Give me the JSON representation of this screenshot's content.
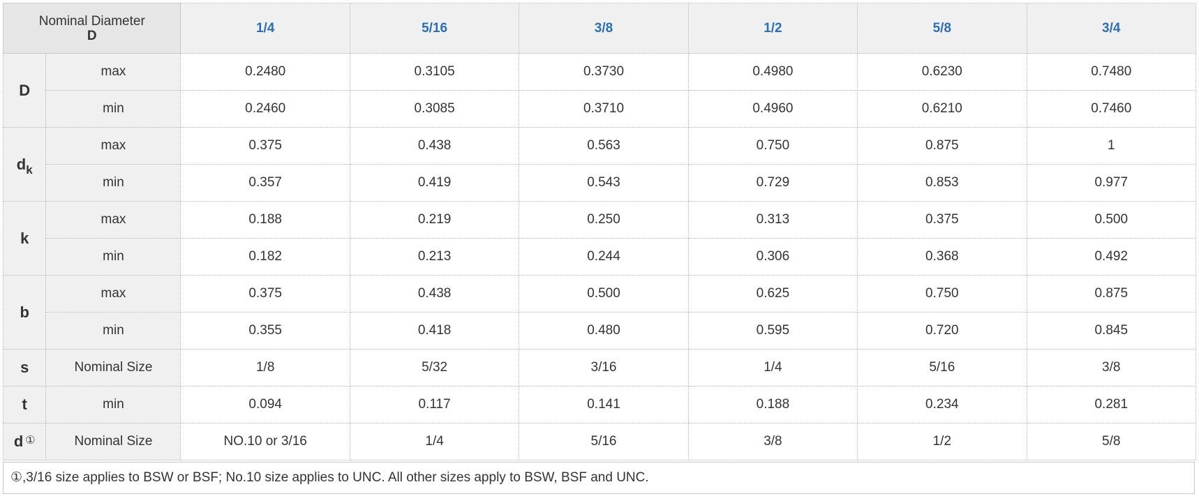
{
  "header": {
    "corner_title": "Nominal Diameter",
    "corner_sub": "D",
    "sizes": [
      "1/4",
      "5/16",
      "3/8",
      "1/2",
      "5/8",
      "3/4"
    ]
  },
  "rows": [
    {
      "param": "D",
      "subscript": "",
      "mark": "",
      "limit": "max",
      "values": [
        "0.2480",
        "0.3105",
        "0.3730",
        "0.4980",
        "0.6230",
        "0.7480"
      ]
    },
    {
      "param": "",
      "subscript": "",
      "mark": "",
      "limit": "min",
      "values": [
        "0.2460",
        "0.3085",
        "0.3710",
        "0.4960",
        "0.6210",
        "0.7460"
      ]
    },
    {
      "param": "d",
      "subscript": "k",
      "mark": "",
      "limit": "max",
      "values": [
        "0.375",
        "0.438",
        "0.563",
        "0.750",
        "0.875",
        "1"
      ]
    },
    {
      "param": "",
      "subscript": "",
      "mark": "",
      "limit": "min",
      "values": [
        "0.357",
        "0.419",
        "0.543",
        "0.729",
        "0.853",
        "0.977"
      ]
    },
    {
      "param": "k",
      "subscript": "",
      "mark": "",
      "limit": "max",
      "values": [
        "0.188",
        "0.219",
        "0.250",
        "0.313",
        "0.375",
        "0.500"
      ]
    },
    {
      "param": "",
      "subscript": "",
      "mark": "",
      "limit": "min",
      "values": [
        "0.182",
        "0.213",
        "0.244",
        "0.306",
        "0.368",
        "0.492"
      ]
    },
    {
      "param": "b",
      "subscript": "",
      "mark": "",
      "limit": "max",
      "values": [
        "0.375",
        "0.438",
        "0.500",
        "0.625",
        "0.750",
        "0.875"
      ]
    },
    {
      "param": "",
      "subscript": "",
      "mark": "",
      "limit": "min",
      "values": [
        "0.355",
        "0.418",
        "0.480",
        "0.595",
        "0.720",
        "0.845"
      ]
    },
    {
      "param": "s",
      "subscript": "",
      "mark": "",
      "limit": "Nominal Size",
      "values": [
        "1/8",
        "5/32",
        "3/16",
        "1/4",
        "5/16",
        "3/8"
      ]
    },
    {
      "param": "t",
      "subscript": "",
      "mark": "",
      "limit": "min",
      "values": [
        "0.094",
        "0.117",
        "0.141",
        "0.188",
        "0.234",
        "0.281"
      ]
    },
    {
      "param": "d",
      "subscript": "",
      "mark": "①",
      "limit": "Nominal Size",
      "values": [
        "NO.10 or 3/16",
        "1/4",
        "5/16",
        "3/8",
        "1/2",
        "5/8"
      ]
    }
  ],
  "footnote": "①,3/16 size applies to BSW or BSF; No.10 size applies to UNC. All other sizes apply to BSW, BSF and UNC."
}
